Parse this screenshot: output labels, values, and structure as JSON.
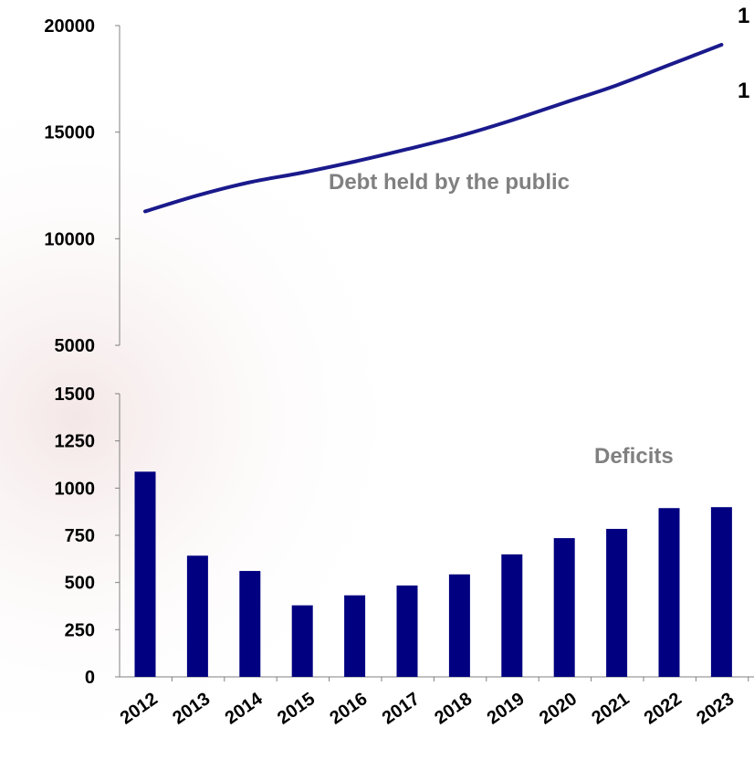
{
  "chart_data": [
    {
      "type": "line",
      "title": "",
      "x": [
        "2012",
        "2013",
        "2014",
        "2015",
        "2016",
        "2017",
        "2018",
        "2019",
        "2020",
        "2021",
        "2022",
        "2023"
      ],
      "series": [
        {
          "name": "Debt held by the public",
          "values": [
            11280,
            12030,
            12650,
            13100,
            13620,
            14200,
            14820,
            15560,
            16380,
            17200,
            18150,
            19100
          ]
        }
      ],
      "ylim": [
        5000,
        20000
      ],
      "yticks": [
        5000,
        10000,
        15000,
        20000
      ],
      "yticklabels": [
        "5000",
        "10000",
        "15000",
        "20000"
      ],
      "annotation": "Debt held by the public",
      "color": "#1a1a8c"
    },
    {
      "type": "bar",
      "title": "",
      "categories": [
        "2012",
        "2013",
        "2014",
        "2015",
        "2016",
        "2017",
        "2018",
        "2019",
        "2020",
        "2021",
        "2022",
        "2023"
      ],
      "series": [
        {
          "name": "Deficits",
          "values": [
            1087,
            642,
            561,
            379,
            432,
            484,
            543,
            649,
            735,
            784,
            894,
            899
          ]
        }
      ],
      "ylim": [
        0,
        1500
      ],
      "yticks": [
        0,
        250,
        500,
        750,
        1000,
        1250,
        1500
      ],
      "yticklabels": [
        "0",
        "250",
        "500",
        "750",
        "1000",
        "1250",
        "1500"
      ],
      "annotation": "Deficits",
      "color": "#000080"
    }
  ],
  "right_edge_text": [
    "1",
    "1"
  ],
  "colors": {
    "background_tint": "#f4e6e6",
    "axis": "#808080",
    "annotation": "#808080"
  }
}
